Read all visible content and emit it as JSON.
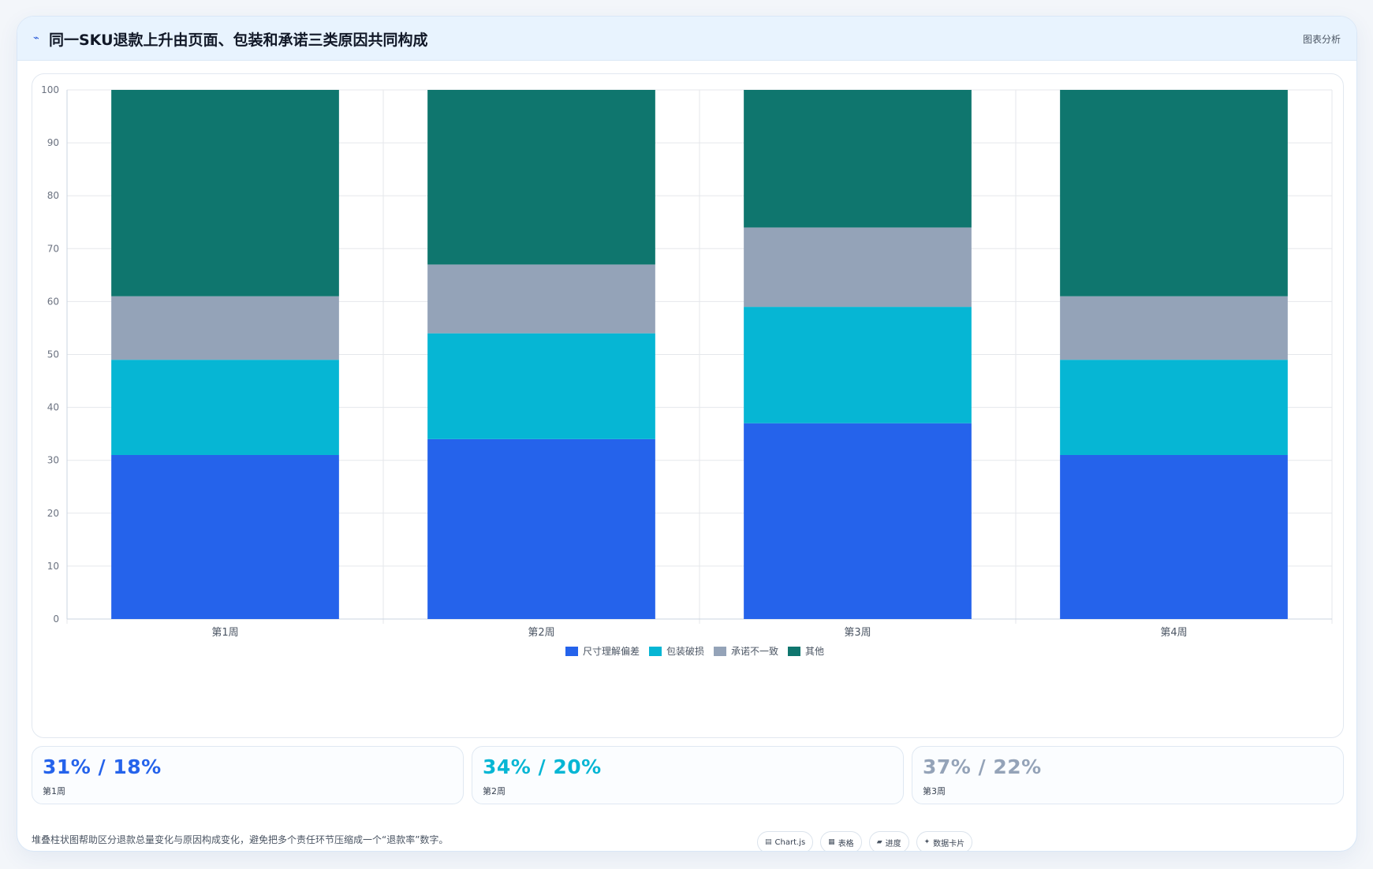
{
  "header": {
    "title": "同一SKU退款上升由页面、包装和承诺三类原因共同构成",
    "icon": "trend-icon",
    "tag": "图表分析"
  },
  "chart_data": {
    "type": "bar",
    "stacked": true,
    "categories": [
      "第1周",
      "第2周",
      "第3周",
      "第4周"
    ],
    "series": [
      {
        "name": "尺寸理解偏差",
        "values": [
          31,
          34,
          37,
          31
        ],
        "color": "#2563eb"
      },
      {
        "name": "包装破损",
        "values": [
          18,
          20,
          22,
          18
        ],
        "color": "#06b6d4"
      },
      {
        "name": "承诺不一致",
        "values": [
          12,
          13,
          15,
          12
        ],
        "color": "#94a3b8"
      },
      {
        "name": "其他",
        "values": [
          39,
          33,
          26,
          39
        ],
        "color": "#0f766e"
      }
    ],
    "ylim": [
      0,
      100
    ],
    "yticks": [
      0,
      10,
      20,
      30,
      40,
      50,
      60,
      70,
      80,
      90,
      100
    ],
    "grid": true,
    "legend": "bottom",
    "xlabel": "",
    "ylabel": ""
  },
  "metrics": [
    {
      "value": "31% / 18%",
      "label": "第1周"
    },
    {
      "value": "34% / 20%",
      "label": "第2周"
    },
    {
      "value": "37% / 22%",
      "label": "第3周"
    }
  ],
  "footer": {
    "note": "堆叠柱状图帮助区分退款总量变化与原因构成变化，避免把多个责任环节压缩成一个“退款率”数字。",
    "chips": [
      {
        "icon": "chart-icon",
        "label": "Chart.js"
      },
      {
        "icon": "table-icon",
        "label": "表格"
      },
      {
        "icon": "progress-icon",
        "label": "进度"
      },
      {
        "icon": "card-icon",
        "label": "数据卡片"
      }
    ]
  }
}
